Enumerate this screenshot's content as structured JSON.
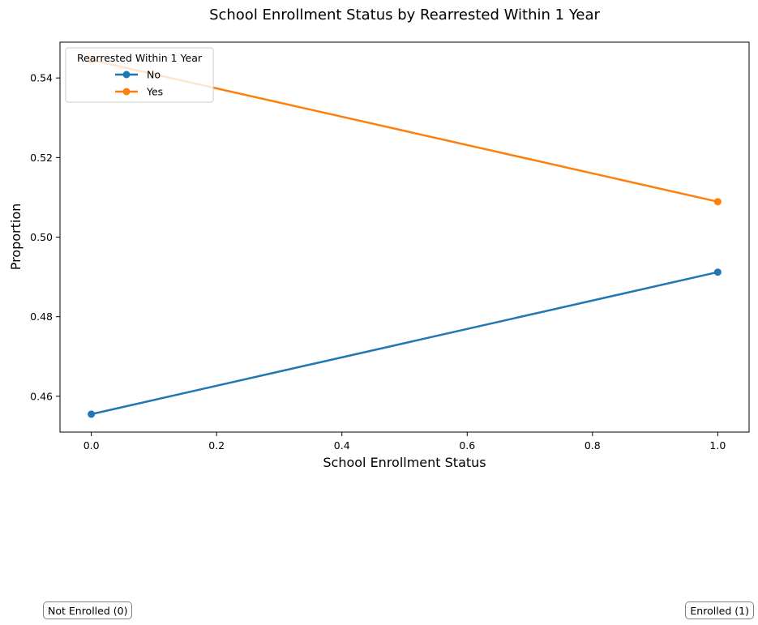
{
  "chart_data": {
    "type": "line",
    "title": "School Enrollment Status by Rearrested Within 1 Year",
    "xlabel": "School Enrollment Status",
    "ylabel": "Proportion",
    "xlim": [
      -0.05,
      1.05
    ],
    "ylim": [
      0.451,
      0.549
    ],
    "x_ticks": [
      0.0,
      0.2,
      0.4,
      0.6,
      0.8,
      1.0
    ],
    "x_tick_labels": [
      "0.0",
      "0.2",
      "0.4",
      "0.6",
      "0.8",
      "1.0"
    ],
    "y_ticks": [
      0.46,
      0.48,
      0.5,
      0.52,
      0.54
    ],
    "y_tick_labels": [
      "0.46",
      "0.48",
      "0.50",
      "0.52",
      "0.54"
    ],
    "grid": false,
    "legend": {
      "title": "Rearrested Within 1 Year",
      "placement": "top-left"
    },
    "series": [
      {
        "name": "No",
        "color": "#1f77b4",
        "x": [
          0,
          1
        ],
        "y": [
          0.4555,
          0.4912
        ]
      },
      {
        "name": "Yes",
        "color": "#ff7f0e",
        "x": [
          0,
          1
        ],
        "y": [
          0.5445,
          0.5089
        ]
      }
    ]
  },
  "annotations": {
    "left": "Not Enrolled (0)",
    "right": "Enrolled (1)"
  }
}
